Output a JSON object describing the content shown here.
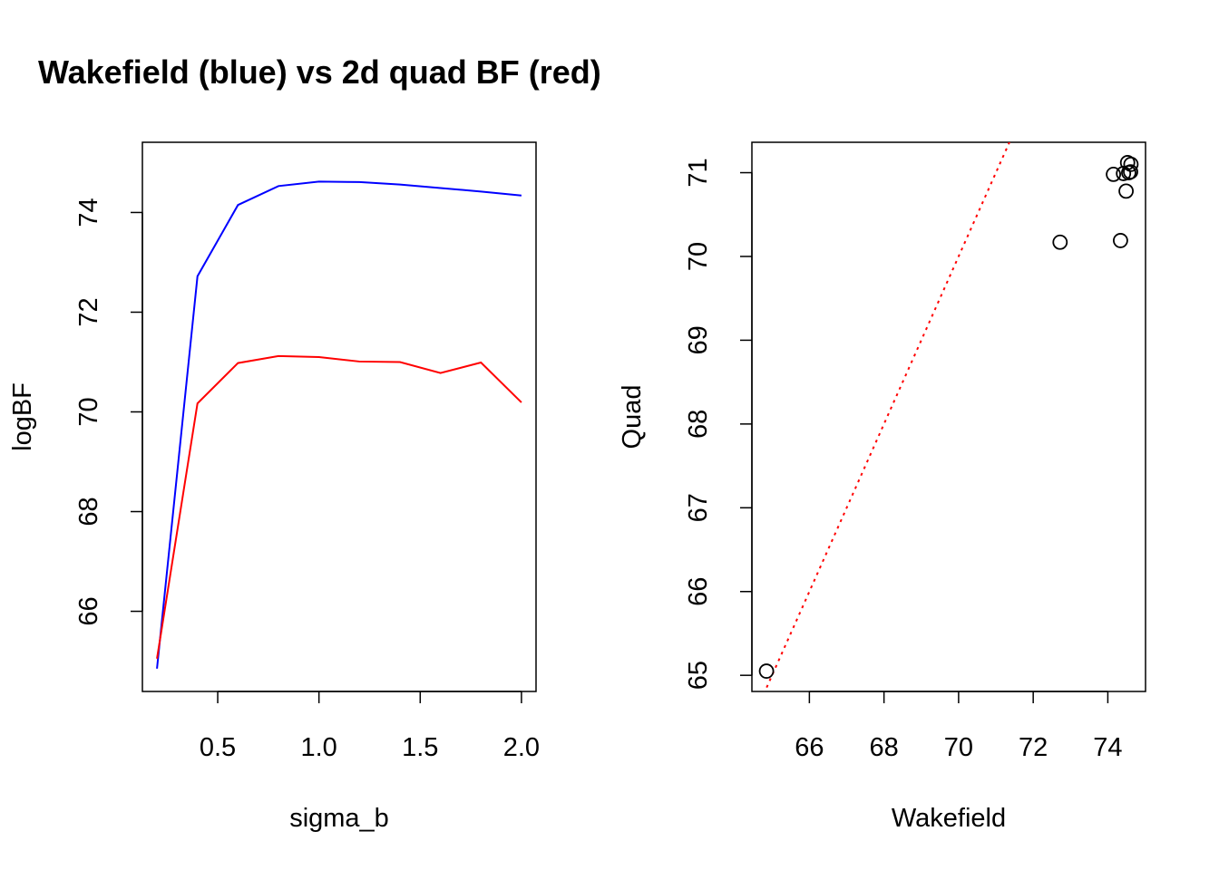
{
  "chart_data": [
    {
      "type": "line",
      "title": "Wakefield (blue) vs 2d quad BF (red)",
      "xlabel": "sigma_b",
      "ylabel": "logBF",
      "xlim": [
        0.2,
        2.0
      ],
      "ylim": [
        64.8,
        75.0
      ],
      "xticks": [
        "0.5",
        "1.0",
        "1.5",
        "2.0"
      ],
      "yticks": [
        "66",
        "68",
        "70",
        "72",
        "74"
      ],
      "x": [
        0.2,
        0.4,
        0.6,
        0.8,
        1.0,
        1.2,
        1.4,
        1.6,
        1.8,
        2.0
      ],
      "series": [
        {
          "color": "#0000ff",
          "values": [
            64.85,
            72.72,
            74.15,
            74.53,
            74.62,
            74.61,
            74.56,
            74.49,
            74.42,
            74.34
          ]
        },
        {
          "color": "#ff0000",
          "values": [
            65.05,
            70.17,
            70.98,
            71.12,
            71.1,
            71.01,
            71.0,
            70.78,
            70.99,
            70.19
          ]
        }
      ],
      "grid": false
    },
    {
      "type": "scatter",
      "xlabel": "Wakefield",
      "ylabel": "Quad",
      "xlim": [
        64.5,
        75.0
      ],
      "ylim": [
        64.8,
        71.4
      ],
      "xticks": [
        "66",
        "68",
        "70",
        "72",
        "74"
      ],
      "yticks": [
        "65",
        "66",
        "67",
        "68",
        "69",
        "70",
        "71"
      ],
      "points": [
        {
          "x": 64.85,
          "y": 65.05
        },
        {
          "x": 72.72,
          "y": 70.17
        },
        {
          "x": 74.15,
          "y": 70.98
        },
        {
          "x": 74.53,
          "y": 71.12
        },
        {
          "x": 74.62,
          "y": 71.1
        },
        {
          "x": 74.61,
          "y": 71.01
        },
        {
          "x": 74.56,
          "y": 71.0
        },
        {
          "x": 74.49,
          "y": 70.78
        },
        {
          "x": 74.42,
          "y": 70.99
        },
        {
          "x": 74.34,
          "y": 70.19
        }
      ],
      "reference_line": {
        "intercept": 0,
        "slope": 1,
        "color": "#ff0000",
        "style": "dotted"
      },
      "grid": false
    }
  ]
}
